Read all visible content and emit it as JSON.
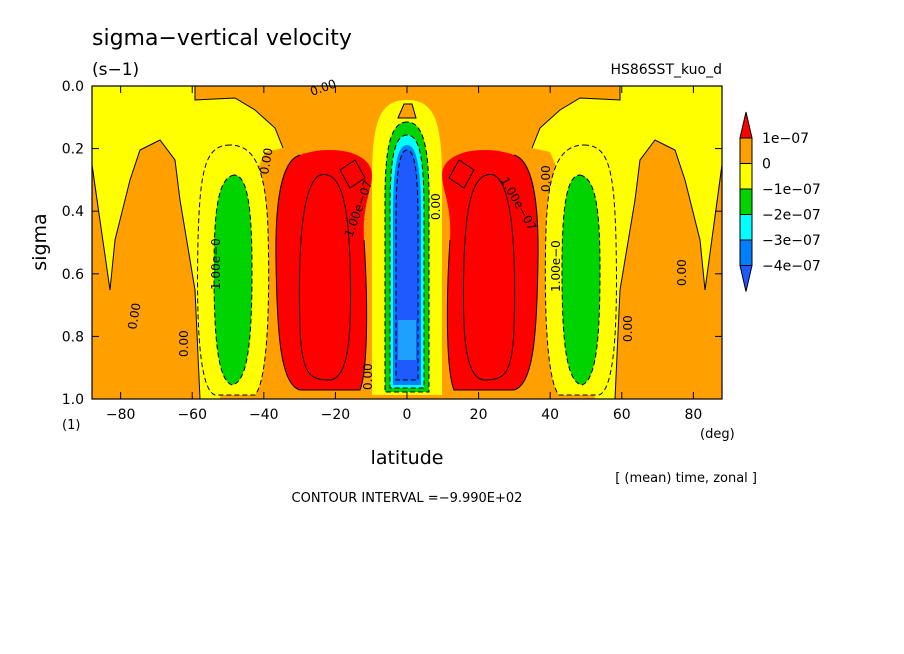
{
  "chart_data": {
    "type": "heatmap",
    "title": "sigma−vertical velocity",
    "units": "(s−1)",
    "run_label": "HS86SST_kuo_d",
    "xlabel": "latitude",
    "x_units": "(deg)",
    "ylabel": "sigma",
    "y_units": "(1)",
    "xlim": [
      -88,
      88
    ],
    "ylim": [
      0.0,
      1.0
    ],
    "y_inverted": true,
    "x_ticks": [
      -80,
      -60,
      -40,
      -20,
      0,
      20,
      40,
      60,
      80
    ],
    "x_tick_labels": [
      "−80",
      "−60",
      "−40",
      "−20",
      "0",
      "20",
      "40",
      "60",
      "80"
    ],
    "y_ticks": [
      0.0,
      0.2,
      0.4,
      0.6,
      0.8,
      1.0
    ],
    "y_tick_labels": [
      "0.0",
      "0.2",
      "0.4",
      "0.6",
      "0.8",
      "1.0"
    ],
    "averaging_note": "[ (mean) time, zonal ]",
    "contour_interval": "CONTOUR INTERVAL =−9.990E+02",
    "contour_labels": [
      "0.00",
      "1.00e−07",
      "1.00e−0"
    ],
    "legend": {
      "placement": "right",
      "labels": [
        "1e−07",
        "0",
        "−1e−07",
        "−2e−07",
        "−3e−07",
        "−4e−07"
      ],
      "colors": [
        "#ff0000",
        "#ff9f00",
        "#ffff00",
        "#00d400",
        "#00ffff",
        "#0080ff",
        "#1e5aff"
      ]
    },
    "regions": [
      {
        "level": "0 to 1e-07",
        "color": "#ff9f00",
        "lat": [
          -88,
          88
        ],
        "sigma": [
          0.0,
          1.0
        ]
      },
      {
        "level": "-1e-07 to 0",
        "color": "#ffff00",
        "lat": [
          -88,
          -62
        ],
        "sigma": [
          0.0,
          0.55
        ]
      },
      {
        "level": "-1e-07 to 0",
        "color": "#ffff00",
        "lat": [
          62,
          88
        ],
        "sigma": [
          0.0,
          0.55
        ]
      },
      {
        "level": "-1e-07 to 0",
        "color": "#ffff00",
        "lat": [
          -66,
          -38
        ],
        "sigma": [
          0.15,
          1.0
        ]
      },
      {
        "level": "-1e-07 to 0",
        "color": "#ffff00",
        "lat": [
          38,
          66
        ],
        "sigma": [
          0.15,
          1.0
        ]
      },
      {
        "level": "-1e-07 to 0",
        "color": "#ffff00",
        "lat": [
          -12,
          12
        ],
        "sigma": [
          0.05,
          1.0
        ]
      },
      {
        "level": "-2e-07 to -1e-07",
        "color": "#00d400",
        "lat": [
          -56,
          -46
        ],
        "sigma": [
          0.28,
          0.96
        ]
      },
      {
        "level": "-2e-07 to -1e-07",
        "color": "#00d400",
        "lat": [
          46,
          56
        ],
        "sigma": [
          0.28,
          0.96
        ]
      },
      {
        "level": "-2e-07 to -1e-07",
        "color": "#00d400",
        "lat": [
          -6,
          6
        ],
        "sigma": [
          0.12,
          0.98
        ]
      },
      {
        "level": "-3e-07 to -2e-07",
        "color": "#00ffff",
        "lat": [
          -4,
          4
        ],
        "sigma": [
          0.14,
          0.96
        ]
      },
      {
        "level": "< -4e-07",
        "color": "#1e5aff",
        "lat": [
          -3,
          3
        ],
        "sigma": [
          0.18,
          0.94
        ]
      },
      {
        "level": "> 1e-07",
        "color": "#ff0000",
        "lat": [
          -40,
          -15
        ],
        "sigma": [
          0.25,
          0.98
        ]
      },
      {
        "level": "> 1e-07",
        "color": "#ff0000",
        "lat": [
          15,
          40
        ],
        "sigma": [
          0.25,
          0.98
        ]
      }
    ]
  }
}
